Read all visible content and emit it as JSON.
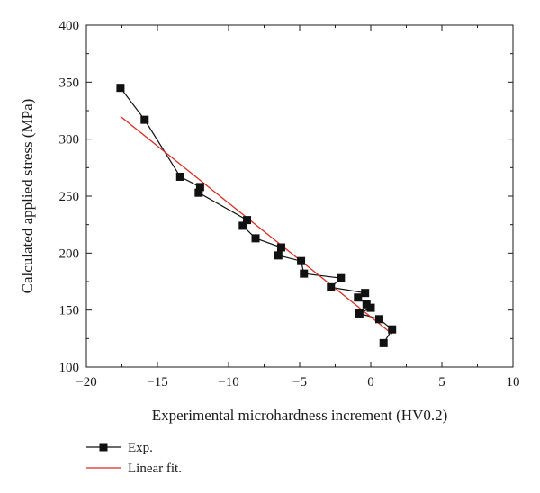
{
  "chart_data": {
    "type": "scatter",
    "xlabel": "Experimental microhardness increment (HV0.2)",
    "ylabel": "Calculated applied stress (MPa)",
    "xlim": [
      -20,
      10
    ],
    "ylim": [
      100,
      400
    ],
    "x_ticks": [
      -20,
      -15,
      -10,
      -5,
      0,
      5,
      10
    ],
    "y_ticks": [
      100,
      150,
      200,
      250,
      300,
      350,
      400
    ],
    "grid": false,
    "legend_position": "bottom-left",
    "series": [
      {
        "name": "Exp.",
        "kind": "line-markers",
        "marker": "square",
        "color": "#111111",
        "x": [
          -17.6,
          -15.9,
          -13.4,
          -12.0,
          -12.1,
          -8.7,
          -9.0,
          -8.1,
          -6.3,
          -6.5,
          -4.9,
          -4.7,
          -2.1,
          -2.8,
          -0.4,
          -0.9,
          -0.3,
          0.0,
          -0.8,
          0.6,
          1.5,
          0.9
        ],
        "y": [
          345,
          317,
          267,
          258,
          253,
          229,
          224,
          213,
          205,
          198,
          193,
          182,
          178,
          170,
          165,
          161,
          155,
          152,
          147,
          142,
          133,
          121
        ]
      },
      {
        "name": "Linear fit.",
        "kind": "line",
        "color": "#d62b1f",
        "x": [
          -17.6,
          1.5
        ],
        "y": [
          320,
          129
        ]
      }
    ]
  }
}
